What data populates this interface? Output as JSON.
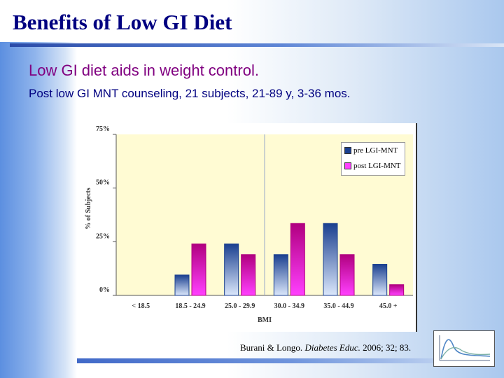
{
  "slide": {
    "title": "Benefits of Low GI Diet",
    "subtitle": "Low GI diet aids in weight control.",
    "detail": "Post low GI MNT counseling, 21 subjects, 21-89 y, 3-36 mos."
  },
  "citation": {
    "authors": "Burani & Longo.",
    "journal": "Diabetes Educ.",
    "rest": "2006; 32; 83."
  },
  "colors": {
    "pre": "#1a3f8f",
    "pre_light": "#dbe7fb",
    "post": "#b0007f",
    "post_light": "#ff40ff",
    "plot_bg": "#fffbd3",
    "rule": "#3050b0"
  },
  "chart_data": {
    "type": "bar",
    "xlabel": "BMI",
    "ylabel": "% of Subjects",
    "ylim": [
      0,
      75
    ],
    "yticks": [
      {
        "value": 0,
        "label": "0%"
      },
      {
        "value": 25,
        "label": "25%"
      },
      {
        "value": 50,
        "label": "50%"
      },
      {
        "value": 75,
        "label": "75%"
      }
    ],
    "categories": [
      "< 18.5",
      "18.5 - 24.9",
      "25.0 - 29.9",
      "30.0 - 34.9",
      "35.0 - 44.9",
      "45.0 +"
    ],
    "series": [
      {
        "name": "pre LGI-MNT",
        "values": [
          0,
          9.5,
          24,
          19,
          33.5,
          14.5
        ]
      },
      {
        "name": "post LGI-MNT",
        "values": [
          0,
          24,
          19,
          33.5,
          19,
          5
        ]
      }
    ],
    "legend_position": "top-right",
    "vertical_marker_after_category": "25.0 - 29.9"
  }
}
